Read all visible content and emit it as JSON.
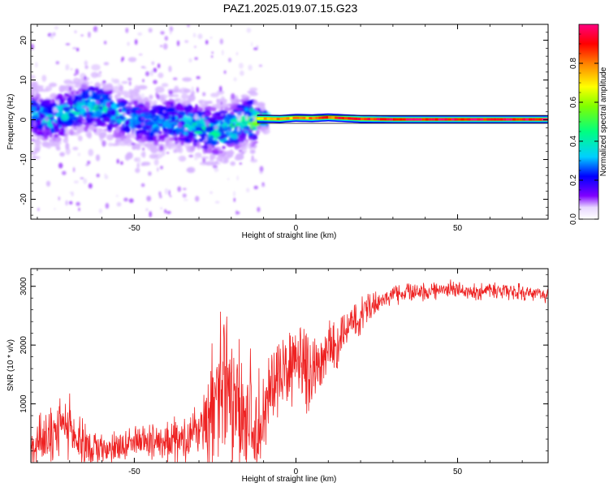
{
  "title": "PAZ1.2025.019.07.15.G23",
  "chart_data": [
    {
      "type": "heatmap",
      "xlabel": "Height of straight line (km)",
      "ylabel": "Frequency (Hz)",
      "xlim": [
        -82,
        78
      ],
      "ylim": [
        -25,
        24
      ],
      "xticks": [
        -50,
        0,
        50
      ],
      "xtick_labels": [
        "-50",
        "0",
        "50"
      ],
      "yticks": [
        20,
        10,
        0,
        -10,
        -20
      ],
      "ytick_labels": [
        "20",
        "10",
        "0",
        "-10",
        "-20"
      ],
      "colorbar": {
        "label": "Normalized spectral amplitude",
        "range": [
          0,
          1
        ],
        "ticks": [
          0.0,
          0.2,
          0.4,
          0.6,
          0.8
        ],
        "tick_labels": [
          "0.0",
          "0.2",
          "0.4",
          "0.6",
          "0.8"
        ]
      },
      "ridge": {
        "x": [
          -82,
          -76,
          -70,
          -65,
          -60,
          -55,
          -50,
          -45,
          -40,
          -35,
          -30,
          -25,
          -20,
          -15,
          -12,
          -10,
          -5,
          0,
          5,
          10,
          20,
          30,
          40,
          50,
          60,
          70,
          78
        ],
        "y": [
          2,
          0,
          2,
          4,
          3,
          1,
          0,
          -1,
          0,
          -1,
          -2,
          -3,
          -2,
          0,
          0.3,
          0.3,
          0.2,
          0.5,
          0.4,
          0.6,
          0.2,
          0.1,
          0.1,
          0.1,
          0.1,
          0.1,
          0.1
        ],
        "amp": [
          0.3,
          0.35,
          0.35,
          0.4,
          0.35,
          0.35,
          0.3,
          0.3,
          0.3,
          0.35,
          0.4,
          0.4,
          0.4,
          0.45,
          0.7,
          0.75,
          0.8,
          0.8,
          0.85,
          0.9,
          0.95,
          1.0,
          1.0,
          1.0,
          1.0,
          1.0,
          1.0
        ]
      }
    },
    {
      "type": "line",
      "xlabel": "Height of straight line (km)",
      "ylabel": "SNR (10 * v/v)",
      "xlim": [
        -82,
        78
      ],
      "ylim": [
        0,
        3300
      ],
      "xticks": [
        -50,
        0,
        50
      ],
      "xtick_labels": [
        "-50",
        "0",
        "50"
      ],
      "yticks": [
        1000,
        2000,
        3000
      ],
      "ytick_labels": [
        "1000",
        "2000",
        "3000"
      ],
      "series": [
        {
          "color": "#ee2222",
          "x": [
            -82,
            -78,
            -74,
            -70,
            -66,
            -62,
            -58,
            -54,
            -50,
            -46,
            -42,
            -38,
            -34,
            -30,
            -26,
            -24,
            -22,
            -20,
            -18,
            -16,
            -14,
            -12,
            -10,
            -8,
            -6,
            -4,
            -2,
            0,
            2,
            4,
            6,
            8,
            10,
            12,
            14,
            16,
            18,
            20,
            22,
            24,
            26,
            28,
            30,
            35,
            40,
            45,
            50,
            55,
            60,
            65,
            70,
            75,
            78
          ],
          "y": [
            250,
            400,
            550,
            600,
            350,
            200,
            200,
            250,
            300,
            350,
            400,
            350,
            400,
            500,
            800,
            1200,
            1400,
            1000,
            900,
            800,
            700,
            500,
            900,
            1300,
            1400,
            1500,
            1600,
            1700,
            1800,
            1500,
            1600,
            1800,
            2000,
            1900,
            2100,
            2300,
            2400,
            2500,
            2600,
            2700,
            2750,
            2800,
            2850,
            2900,
            2900,
            2950,
            2950,
            2900,
            2950,
            2900,
            2900,
            2850,
            2850
          ],
          "amp": [
            300,
            500,
            500,
            600,
            450,
            300,
            250,
            300,
            300,
            300,
            350,
            400,
            450,
            500,
            900,
            1200,
            1300,
            1100,
            1100,
            900,
            800,
            600,
            600,
            700,
            700,
            700,
            700,
            600,
            650,
            700,
            650,
            650,
            500,
            450,
            450,
            400,
            350,
            300,
            300,
            250,
            200,
            200,
            180,
            150,
            150,
            150,
            150,
            150,
            150,
            140,
            140,
            130,
            130
          ]
        }
      ]
    }
  ]
}
